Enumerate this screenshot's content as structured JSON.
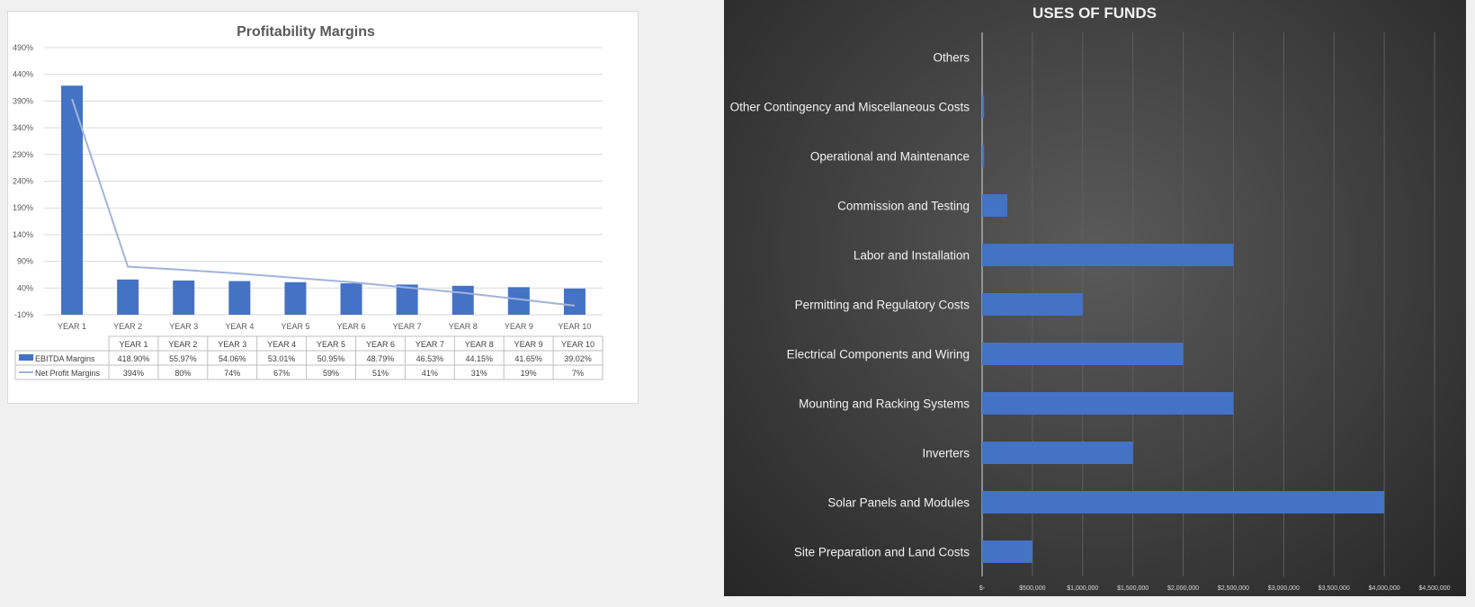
{
  "chart_data": [
    {
      "type": "bar",
      "title": "Profitability Margins",
      "categories": [
        "YEAR 1",
        "YEAR 2",
        "YEAR 3",
        "YEAR 4",
        "YEAR 5",
        "YEAR 6",
        "YEAR 7",
        "YEAR 8",
        "YEAR 9",
        "YEAR 10"
      ],
      "yticks": [
        "490%",
        "440%",
        "390%",
        "340%",
        "290%",
        "240%",
        "190%",
        "140%",
        "90%",
        "40%",
        "-10%"
      ],
      "ylim": [
        -10,
        490
      ],
      "grid": true,
      "legend": "data-table",
      "colors": {
        "bar": "#4472c4",
        "line": "#a3b3da"
      },
      "series": [
        {
          "name": "EBITDA Margins",
          "type": "bar",
          "values": [
            418.9,
            55.97,
            54.06,
            53.01,
            50.95,
            48.79,
            46.53,
            44.15,
            41.65,
            39.02
          ],
          "labels": [
            "418.90%",
            "55.97%",
            "54.06%",
            "53.01%",
            "50.95%",
            "48.79%",
            "46.53%",
            "44.15%",
            "41.65%",
            "39.02%"
          ]
        },
        {
          "name": "Net Profit Margins",
          "type": "line",
          "values": [
            394,
            80,
            74,
            67,
            59,
            51,
            41,
            31,
            19,
            7
          ],
          "labels": [
            "394%",
            "80%",
            "74%",
            "67%",
            "59%",
            "51%",
            "41%",
            "31%",
            "19%",
            "7%"
          ]
        }
      ]
    },
    {
      "type": "bar",
      "orientation": "horizontal",
      "title": "USES OF FUNDS",
      "categories": [
        "Others",
        "Other Contingency and Miscellaneous Costs",
        "Operational and Maintenance",
        "Commission and Testing",
        "Labor and Installation",
        "Permitting and Regulatory Costs",
        "Electrical Components and Wiring",
        "Mounting and Racking Systems",
        "Inverters",
        "Solar Panels and Modules",
        "Site Preparation and Land Costs"
      ],
      "values": [
        0,
        20000,
        20000,
        250000,
        2500000,
        1000000,
        2000000,
        2500000,
        1500000,
        4000000,
        500000
      ],
      "xticks": [
        "$-",
        "$500,000",
        "$1,000,000",
        "$1,500,000",
        "$2,000,000",
        "$2,500,000",
        "$3,000,000",
        "$3,500,000",
        "$4,000,000",
        "$4,500,000"
      ],
      "xlim": [
        0,
        4500000
      ],
      "grid": true,
      "colors": {
        "bar": "#4472c4",
        "background": "#3e3e3e"
      }
    }
  ]
}
